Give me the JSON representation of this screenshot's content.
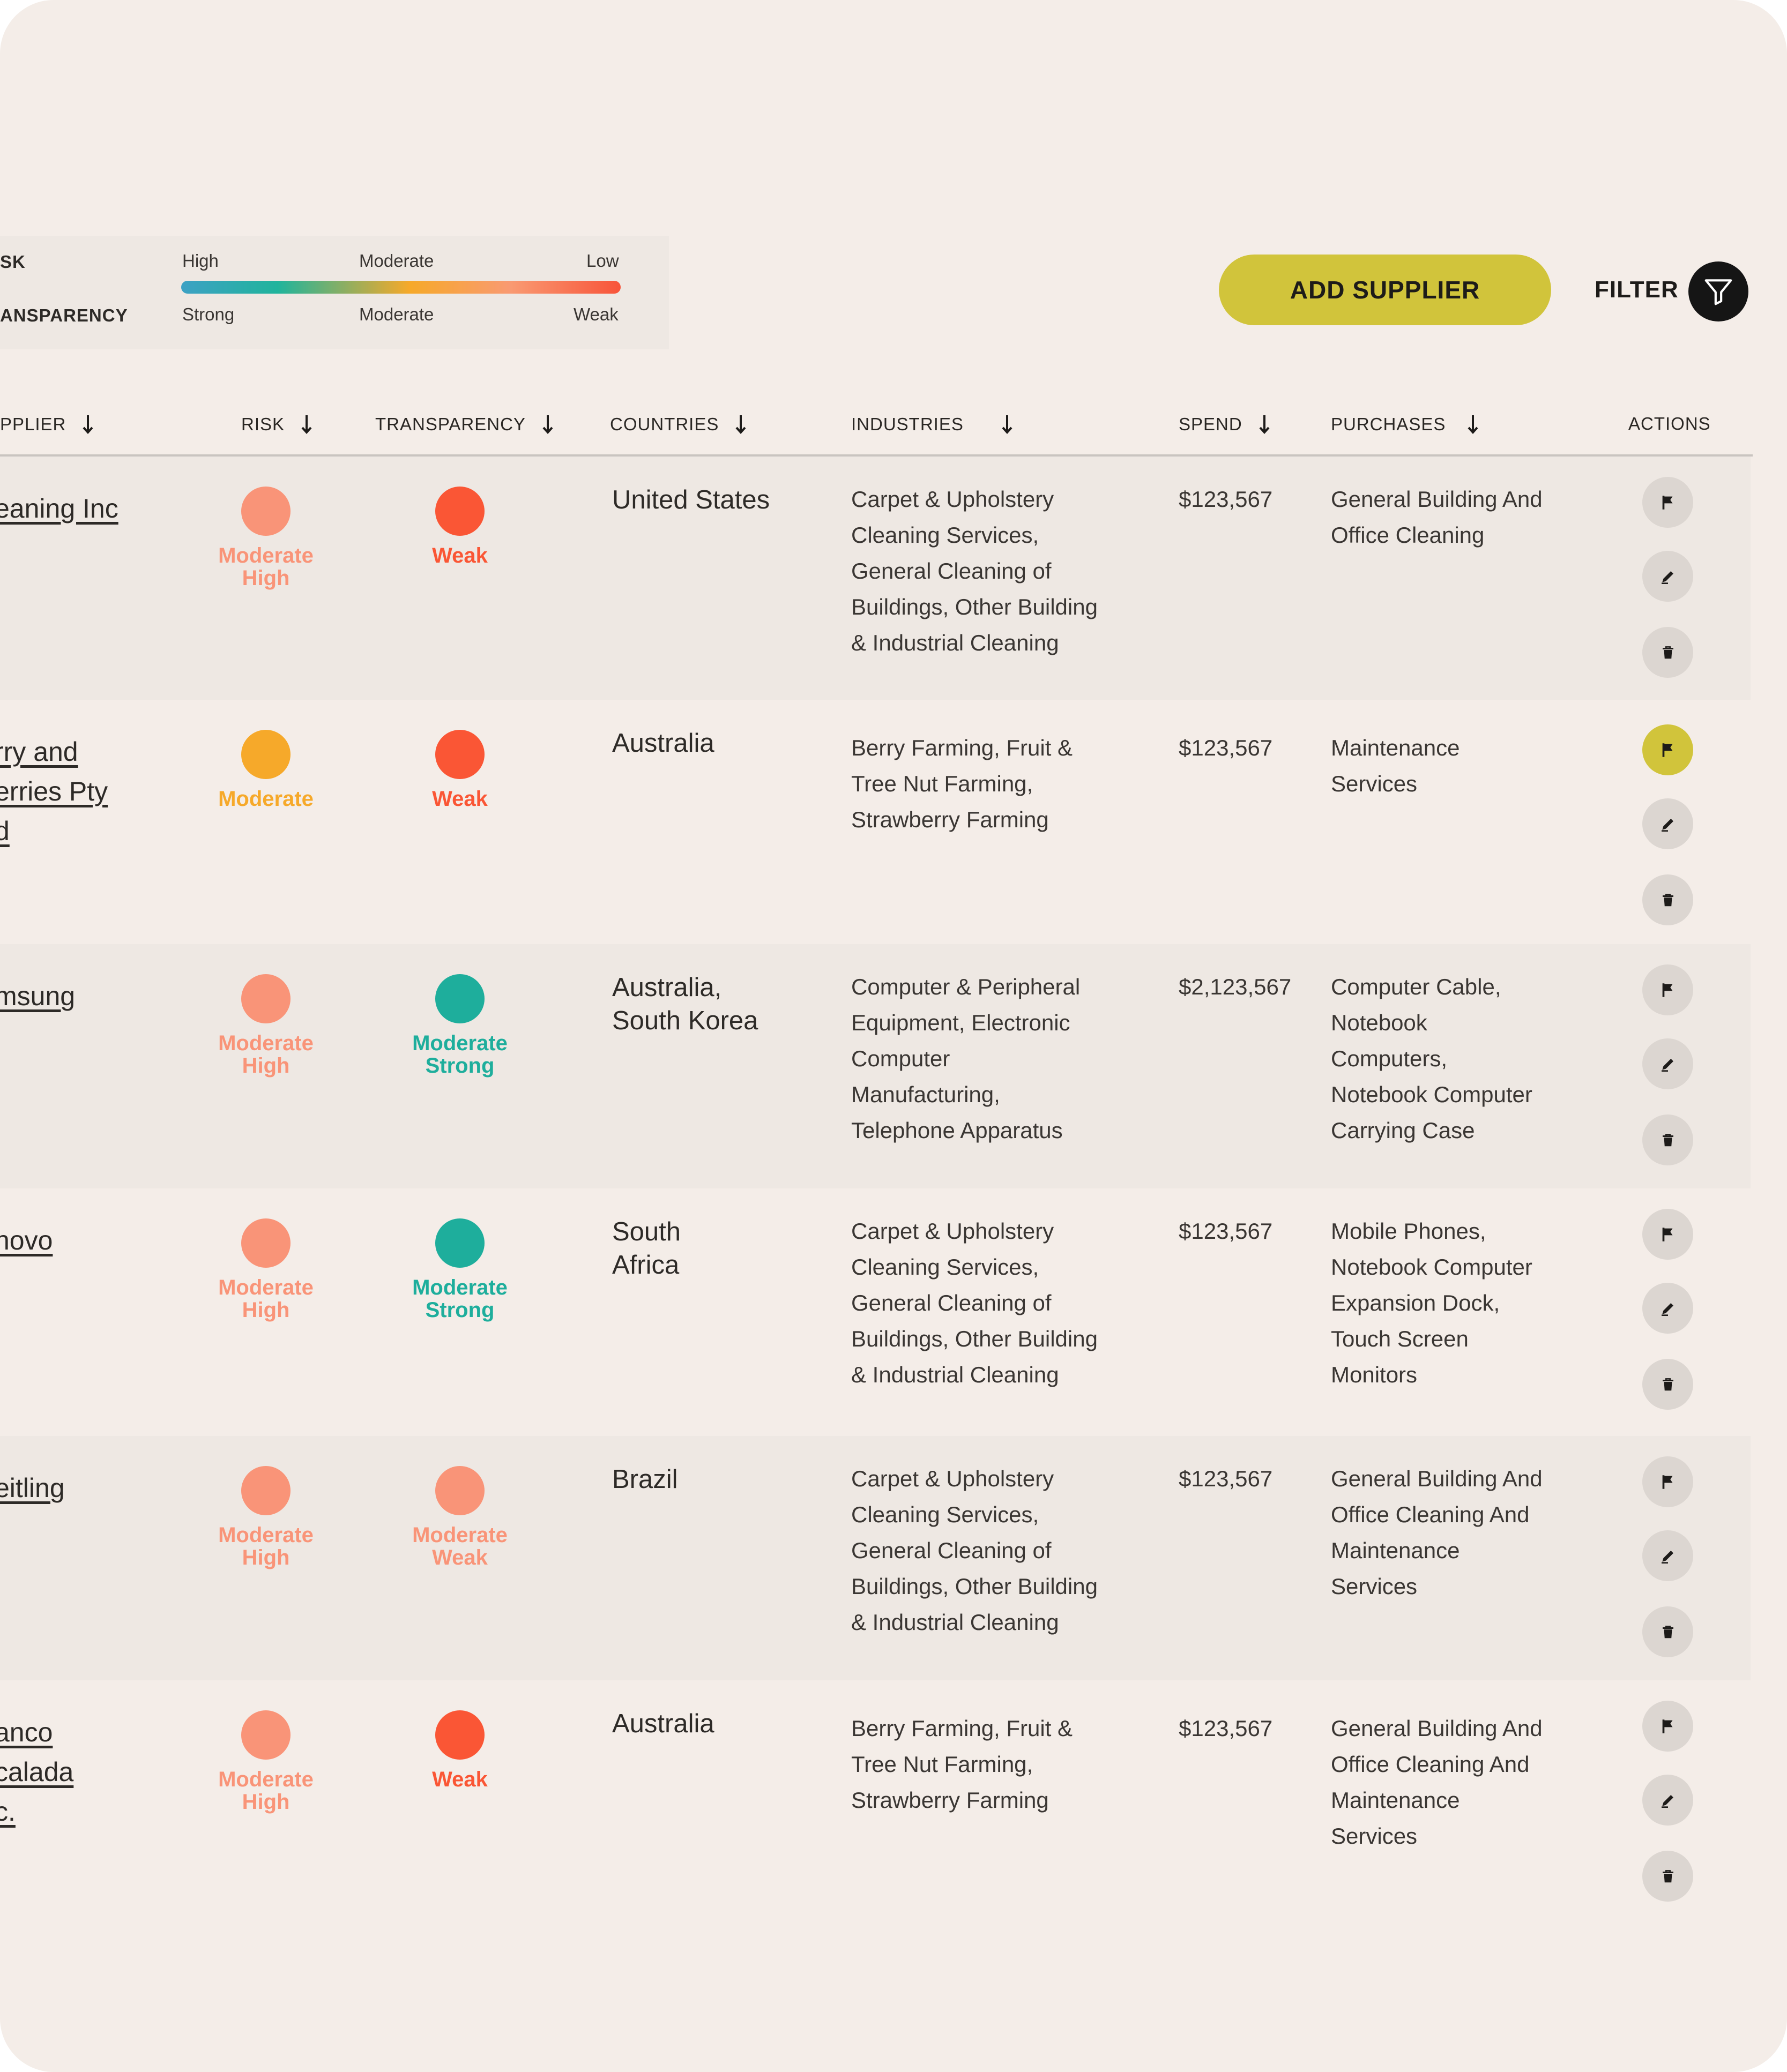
{
  "legend": {
    "risk_label": "SK",
    "transparency_label": "ANSPARENCY",
    "risk_ticks": [
      "High",
      "Moderate",
      "Low"
    ],
    "transparency_ticks": [
      "Strong",
      "Moderate",
      "Weak"
    ]
  },
  "toolbar": {
    "add_label": "ADD SUPPLIER",
    "filter_label": "FILTER"
  },
  "columns": {
    "supplier": "PPLIER",
    "risk": "RISK",
    "transparency": "TRANSPARENCY",
    "countries": "COUNTRIES",
    "industries": "INDUSTRIES",
    "spend": "SPEND",
    "purchases": "PURCHASES",
    "actions": "ACTIONS"
  },
  "colors": {
    "moderate_high": "#f99478",
    "moderate": "#f6a92a",
    "weak": "#fa5635",
    "moderate_strong": "#1eae9c",
    "moderate_weak": "#f99478",
    "accent": "#d1c43b"
  },
  "rows": [
    {
      "supplier": [
        "eaning Inc"
      ],
      "risk": "Moderate High",
      "risk_lines": [
        "Moderate",
        "High"
      ],
      "risk_color": "#f99478",
      "transparency_lines": [
        "Weak"
      ],
      "transparency_color": "#fa5635",
      "countries": [
        "United States"
      ],
      "industries": [
        "Carpet & Upholstery",
        "Cleaning Services,",
        "General Cleaning of",
        "Buildings, Other Building",
        "& Industrial Cleaning"
      ],
      "spend": "$123,567",
      "purchases": [
        "General Building And",
        "Office Cleaning"
      ],
      "flag_active": false
    },
    {
      "supplier": [
        "rry and",
        "erries Pty",
        "d"
      ],
      "risk_lines": [
        "Moderate"
      ],
      "risk_color": "#f6a92a",
      "transparency_lines": [
        "Weak"
      ],
      "transparency_color": "#fa5635",
      "countries": [
        "Australia"
      ],
      "industries": [
        "Berry Farming, Fruit &",
        "Tree Nut Farming,",
        "Strawberry Farming"
      ],
      "spend": "$123,567",
      "purchases": [
        "Maintenance",
        "Services"
      ],
      "flag_active": true
    },
    {
      "supplier": [
        "msung"
      ],
      "risk_lines": [
        "Moderate",
        "High"
      ],
      "risk_color": "#f99478",
      "transparency_lines": [
        "Moderate",
        "Strong"
      ],
      "transparency_color": "#1eae9c",
      "countries": [
        "Australia,",
        "South Korea"
      ],
      "industries": [
        "Computer & Peripheral",
        "Equipment, Electronic",
        "Computer",
        "Manufacturing,",
        "Telephone Apparatus"
      ],
      "spend": "$2,123,567",
      "purchases": [
        "Computer Cable,",
        "Notebook",
        "Computers,",
        "Notebook Computer",
        "Carrying Case"
      ],
      "flag_active": false
    },
    {
      "supplier": [
        "novo"
      ],
      "risk_lines": [
        "Moderate",
        "High"
      ],
      "risk_color": "#f99478",
      "transparency_lines": [
        "Moderate",
        "Strong"
      ],
      "transparency_color": "#1eae9c",
      "countries": [
        "South",
        "Africa"
      ],
      "industries": [
        "Carpet & Upholstery",
        "Cleaning Services,",
        "General Cleaning of",
        "Buildings, Other Building",
        "& Industrial Cleaning"
      ],
      "spend": "$123,567",
      "purchases": [
        "Mobile Phones,",
        "Notebook Computer",
        "Expansion Dock,",
        "Touch Screen",
        "Monitors"
      ],
      "flag_active": false
    },
    {
      "supplier": [
        "eitling"
      ],
      "risk_lines": [
        "Moderate",
        "High"
      ],
      "risk_color": "#f99478",
      "transparency_lines": [
        "Moderate",
        "Weak"
      ],
      "transparency_color": "#f99478",
      "countries": [
        "Brazil"
      ],
      "industries": [
        "Carpet & Upholstery",
        "Cleaning Services,",
        "General Cleaning of",
        "Buildings, Other Building",
        "& Industrial Cleaning"
      ],
      "spend": "$123,567",
      "purchases": [
        "General Building And",
        "Office Cleaning And",
        "Maintenance",
        "Services"
      ],
      "flag_active": false
    },
    {
      "supplier": [
        "anco",
        "calada",
        "c."
      ],
      "risk_lines": [
        "Moderate",
        "High"
      ],
      "risk_color": "#f99478",
      "transparency_lines": [
        "Weak"
      ],
      "transparency_color": "#fa5635",
      "countries": [
        "Australia"
      ],
      "industries": [
        "Berry Farming, Fruit &",
        "Tree Nut Farming,",
        "Strawberry Farming"
      ],
      "spend": "$123,567",
      "purchases": [
        "General Building And",
        "Office Cleaning And",
        "Maintenance",
        "Services"
      ],
      "flag_active": false
    }
  ]
}
